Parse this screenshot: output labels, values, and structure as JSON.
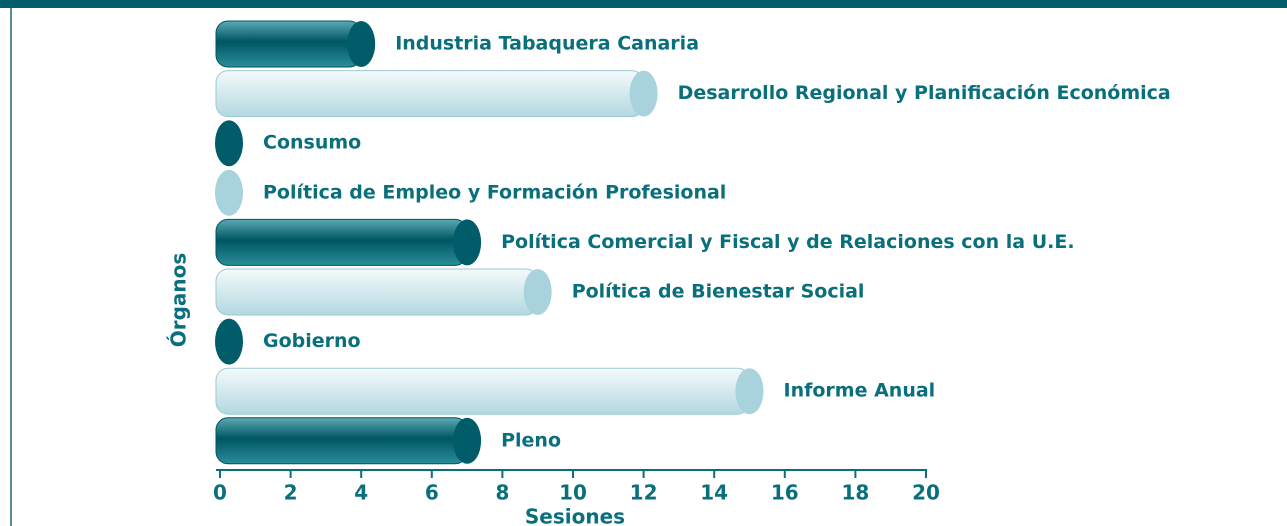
{
  "chart_data": {
    "type": "bar",
    "orientation": "horizontal",
    "xlabel": "Sesiones",
    "ylabel": "Órganos",
    "categories": [
      "Industria Tabaquera Canaria",
      "Desarrollo Regional y Planificación Económica",
      "Consumo",
      "Política de Empleo y Formación Profesional",
      "Política Comercial y Fiscal y de Relaciones con la U.E.",
      "Política de Bienestar Social",
      "Gobierno",
      "Informe Anual",
      "Pleno"
    ],
    "values": [
      4,
      12,
      0,
      0,
      7,
      9,
      0,
      15,
      7
    ],
    "colors": [
      "#0a6f7c",
      "#a8d2dc"
    ],
    "xlim": [
      0,
      20
    ],
    "xticks": [
      0,
      2,
      4,
      6,
      8,
      10,
      12,
      14,
      16,
      18,
      20
    ]
  }
}
